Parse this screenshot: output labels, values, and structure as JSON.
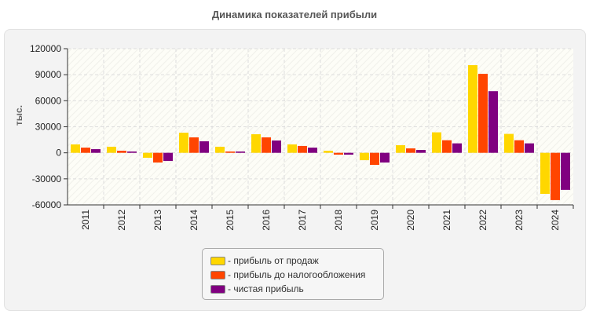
{
  "chart_data": {
    "type": "bar",
    "title": "Динамика показателей прибыли",
    "ylabel": "тыс.",
    "xlabel": "",
    "ylim": [
      -60000,
      120000
    ],
    "yticks": [
      -60000,
      -30000,
      0,
      30000,
      60000,
      90000,
      120000
    ],
    "grid": true,
    "legend_position": "bottom",
    "categories": [
      "2011",
      "2012",
      "2013",
      "2014",
      "2015",
      "2016",
      "2017",
      "2018",
      "2019",
      "2020",
      "2021",
      "2022",
      "2023",
      "2024"
    ],
    "series": [
      {
        "name": "- прибыль от продаж",
        "color": "#FFD700",
        "values": [
          9700,
          7000,
          -5700,
          23200,
          7000,
          21400,
          9700,
          2400,
          -8500,
          8800,
          23600,
          101000,
          21800,
          -47300
        ]
      },
      {
        "name": "- прибыль до налогообложения",
        "color": "#FF4500",
        "values": [
          6000,
          2400,
          -11200,
          17800,
          1500,
          17800,
          7900,
          -2100,
          -13900,
          5100,
          14500,
          91000,
          14500,
          -54500
        ]
      },
      {
        "name": "- чистая прибыль",
        "color": "#800080",
        "values": [
          4200,
          1500,
          -9400,
          13300,
          1500,
          14200,
          6000,
          -2100,
          -11200,
          3300,
          10900,
          71000,
          10900,
          -42700
        ]
      }
    ]
  }
}
